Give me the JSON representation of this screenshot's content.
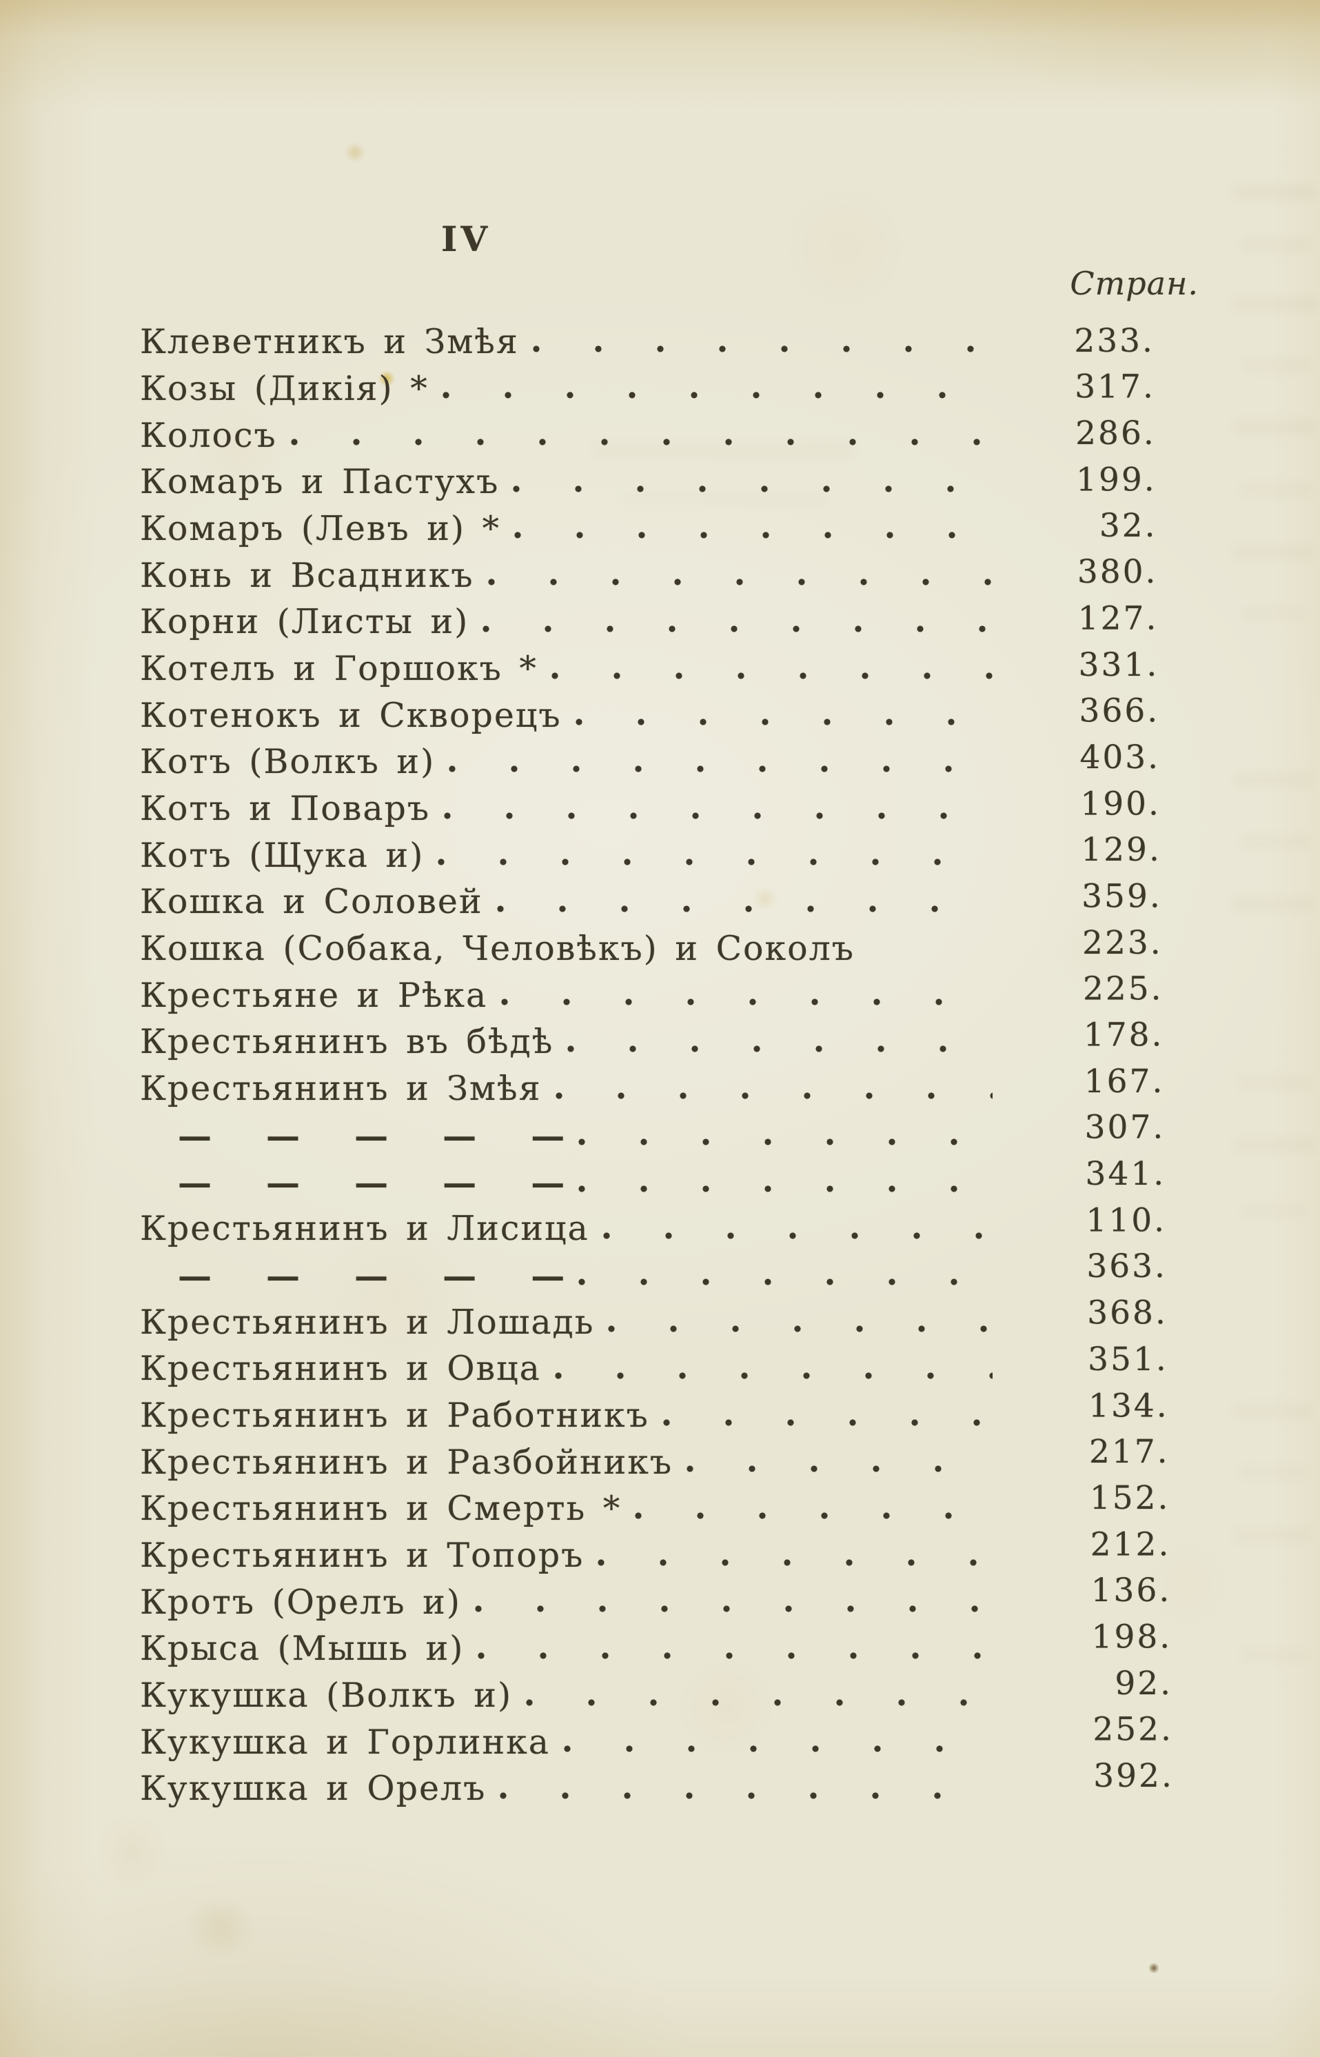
{
  "page": {
    "header": "IV",
    "column_header": "Стран."
  },
  "entries": [
    {
      "title": "Клеветникъ и Змѣя",
      "page": "233."
    },
    {
      "title": "Козы (Дикія) *",
      "page": "317."
    },
    {
      "title": "Колосъ",
      "page": "286."
    },
    {
      "title": "Комаръ и Пастухъ",
      "page": "199."
    },
    {
      "title": "Комаръ (Левъ и) *",
      "page": "32."
    },
    {
      "title": "Конь и Всадникъ",
      "page": "380."
    },
    {
      "title": "Корни (Листы и)",
      "page": "127."
    },
    {
      "title": "Котелъ и Горшокъ *",
      "page": "331."
    },
    {
      "title": "Котенокъ и Скворецъ",
      "page": "366."
    },
    {
      "title": "Котъ (Волкъ и)",
      "page": "403."
    },
    {
      "title": "Котъ и Поваръ",
      "page": "190."
    },
    {
      "title": "Котъ (Щука и)",
      "page": "129."
    },
    {
      "title": "Кошка и Соловей",
      "page": "359."
    },
    {
      "title": "Кошка (Собака, Человѣкъ) и Соколъ",
      "page": "223.",
      "leader": false
    },
    {
      "title": "Крестьяне и Рѣка",
      "page": "225."
    },
    {
      "title": "Крестьянинъ въ бѣдѣ",
      "page": "178."
    },
    {
      "title": "Крестьянинъ и Змѣя",
      "page": "167."
    },
    {
      "title": "— — — — —",
      "page": "307.",
      "ditto": true
    },
    {
      "title": "— — — — —",
      "page": "341.",
      "ditto": true
    },
    {
      "title": "Крестьянинъ и Лисица",
      "page": "110."
    },
    {
      "title": "— — — — —",
      "page": "363.",
      "ditto": true
    },
    {
      "title": "Крестьянинъ и Лошадь",
      "page": "368."
    },
    {
      "title": "Крестьянинъ и Овца",
      "page": "351."
    },
    {
      "title": "Крестьянинъ и Работникъ",
      "page": "134."
    },
    {
      "title": "Крестьянинъ и Разбойникъ",
      "page": "217."
    },
    {
      "title": "Крестьянинъ и Смерть *",
      "page": "152."
    },
    {
      "title": "Крестьянинъ и Топоръ",
      "page": "212."
    },
    {
      "title": "Кротъ (Орелъ и)",
      "page": "136."
    },
    {
      "title": "Крыса (Мышь и)",
      "page": "198."
    },
    {
      "title": "Кукушка (Волкъ и)",
      "page": "92."
    },
    {
      "title": "Кукушка и Горлинка",
      "page": "252."
    },
    {
      "title": "Кукушка и Орелъ",
      "page": "392."
    }
  ],
  "colors": {
    "ink": "#3d3829",
    "paper": "#e9e6d4"
  }
}
